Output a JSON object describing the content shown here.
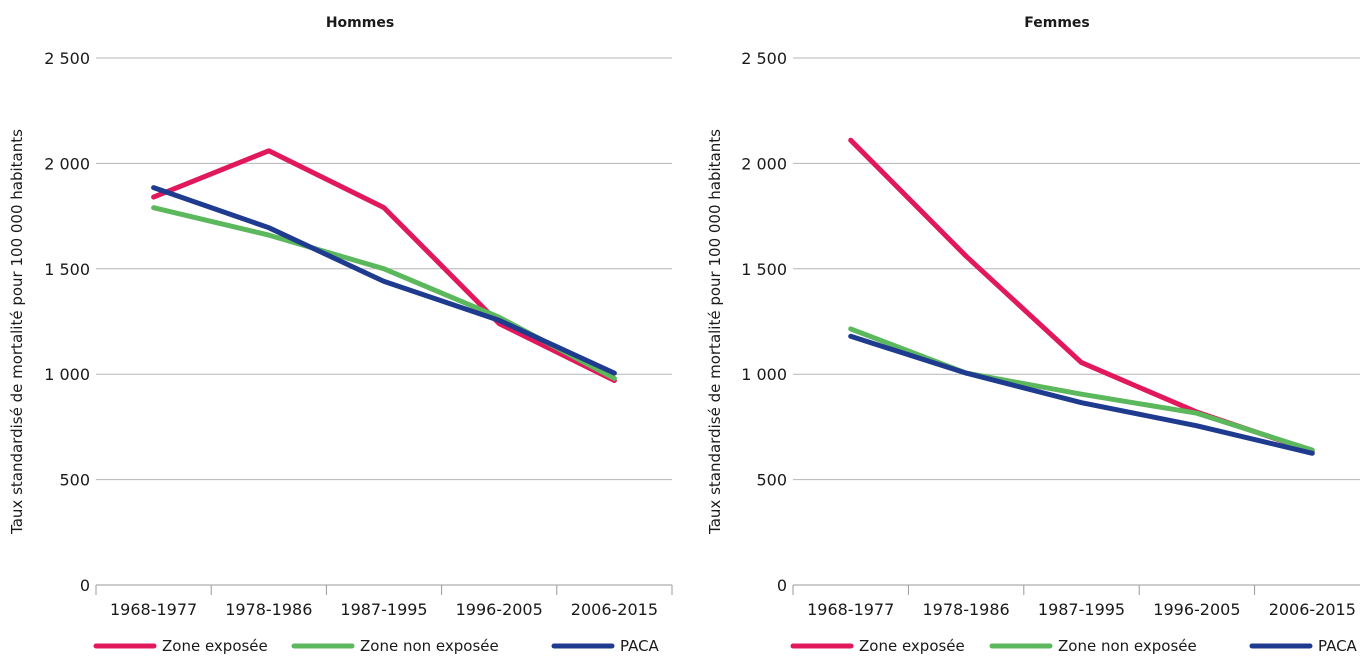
{
  "chart_data": [
    {
      "type": "line",
      "title": "Hommes",
      "ylabel": "Taux standardisé de mortalité pour 100 000 habitants",
      "xlabel": "",
      "ylim": [
        0,
        2500
      ],
      "yticks": [
        0,
        500,
        1000,
        1500,
        2000,
        2500
      ],
      "ytick_labels": [
        "0",
        "500",
        "1 000",
        "1 500",
        "2 000",
        "2 500"
      ],
      "categories": [
        "1968-1977",
        "1978-1986",
        "1987-1995",
        "1996-2005",
        "2006-2015"
      ],
      "grid": "horizontal",
      "legend": "bottom",
      "series": [
        {
          "name": "Zone exposée",
          "color": "#e2185c",
          "values": [
            1840,
            2060,
            1790,
            1240,
            970
          ]
        },
        {
          "name": "Zone non exposée",
          "color": "#5cb85c",
          "values": [
            1790,
            1660,
            1500,
            1270,
            980
          ]
        },
        {
          "name": "PACA",
          "color": "#1f3b8f",
          "values": [
            1885,
            1695,
            1440,
            1255,
            1005
          ]
        }
      ]
    },
    {
      "type": "line",
      "title": "Femmes",
      "ylabel": "Taux standardisé de mortalité pour 100 000 habitants",
      "xlabel": "",
      "ylim": [
        0,
        2500
      ],
      "yticks": [
        0,
        500,
        1000,
        1500,
        2000,
        2500
      ],
      "ytick_labels": [
        "0",
        "500",
        "1 000",
        "1 500",
        "2 000",
        "2 500"
      ],
      "categories": [
        "1968-1977",
        "1978-1986",
        "1987-1995",
        "1996-2005",
        "2006-2015"
      ],
      "grid": "horizontal",
      "legend": "bottom",
      "series": [
        {
          "name": "Zone exposée",
          "color": "#e2185c",
          "values": [
            2110,
            1560,
            1055,
            820,
            635
          ]
        },
        {
          "name": "Zone non exposée",
          "color": "#5cb85c",
          "values": [
            1215,
            1005,
            905,
            815,
            640
          ]
        },
        {
          "name": "PACA",
          "color": "#1f3b8f",
          "values": [
            1180,
            1005,
            865,
            755,
            625
          ]
        }
      ]
    }
  ]
}
